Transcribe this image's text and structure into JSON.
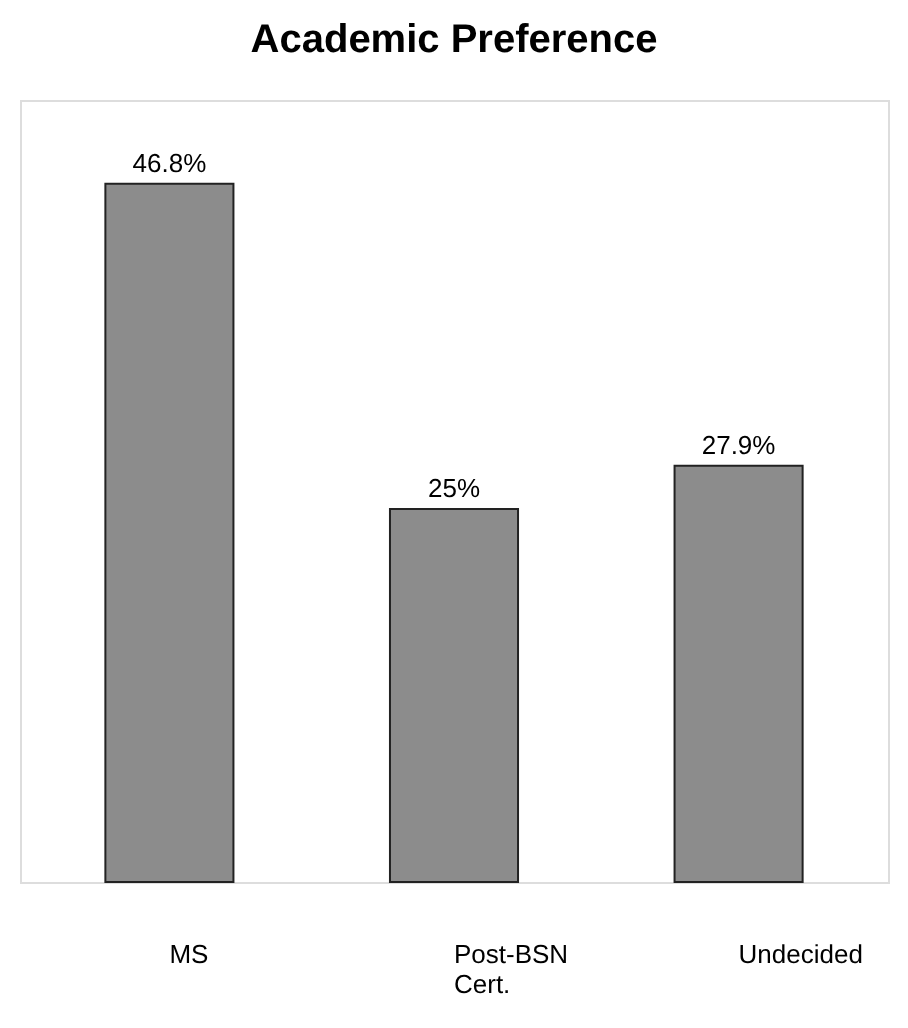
{
  "chart_data": {
    "type": "bar",
    "title": "Academic Preference",
    "categories": [
      "MS",
      "Post-BSN Cert.",
      "Undecided"
    ],
    "values": [
      46.8,
      25,
      27.9
    ],
    "value_labels": [
      "46.8%",
      "25%",
      "27.9%"
    ],
    "color": "#8c8c8c",
    "grid": false
  }
}
